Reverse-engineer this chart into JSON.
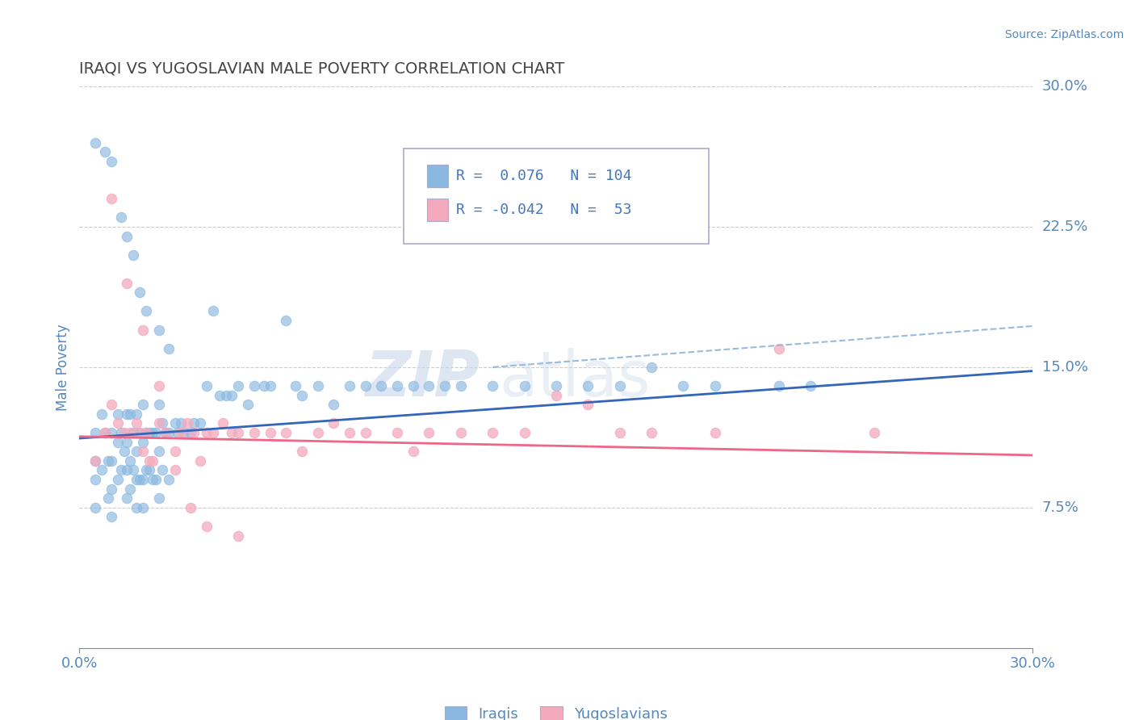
{
  "title": "IRAQI VS YUGOSLAVIAN MALE POVERTY CORRELATION CHART",
  "source": "Source: ZipAtlas.com",
  "ylabel": "Male Poverty",
  "xlim": [
    0.0,
    0.3
  ],
  "ylim": [
    0.0,
    0.3
  ],
  "xtick_positions": [
    0.0,
    0.3
  ],
  "xtick_labels": [
    "0.0%",
    "30.0%"
  ],
  "ytick_positions": [
    0.075,
    0.15,
    0.225,
    0.3
  ],
  "ytick_labels": [
    "7.5%",
    "15.0%",
    "22.5%",
    "30.0%"
  ],
  "grid_lines": [
    0.075,
    0.15,
    0.225,
    0.3
  ],
  "iraqis_color": "#8BB8E0",
  "yugoslavians_color": "#F4AABD",
  "iraqis_R": 0.076,
  "iraqis_N": 104,
  "yugoslavians_R": -0.042,
  "yugoslavians_N": 53,
  "iraqis_line_color": "#3366BB",
  "yugoslavians_line_color": "#EE6688",
  "dashed_line_color": "#99BBDD",
  "background_color": "#FFFFFF",
  "grid_color": "#CCCCCC",
  "title_color": "#444444",
  "tick_color": "#5588BB",
  "legend_text_color": "#4477BB",
  "iraqis_x": [
    0.005,
    0.005,
    0.005,
    0.005,
    0.007,
    0.007,
    0.008,
    0.009,
    0.009,
    0.01,
    0.01,
    0.01,
    0.01,
    0.012,
    0.012,
    0.012,
    0.013,
    0.013,
    0.014,
    0.015,
    0.015,
    0.015,
    0.015,
    0.016,
    0.016,
    0.016,
    0.017,
    0.017,
    0.018,
    0.018,
    0.018,
    0.018,
    0.019,
    0.019,
    0.02,
    0.02,
    0.02,
    0.02,
    0.021,
    0.021,
    0.022,
    0.022,
    0.023,
    0.023,
    0.024,
    0.024,
    0.025,
    0.025,
    0.025,
    0.026,
    0.026,
    0.027,
    0.028,
    0.028,
    0.03,
    0.031,
    0.032,
    0.033,
    0.035,
    0.036,
    0.038,
    0.04,
    0.042,
    0.044,
    0.046,
    0.048,
    0.05,
    0.053,
    0.055,
    0.058,
    0.06,
    0.065,
    0.068,
    0.07,
    0.075,
    0.08,
    0.085,
    0.09,
    0.095,
    0.1,
    0.105,
    0.11,
    0.115,
    0.12,
    0.13,
    0.14,
    0.15,
    0.16,
    0.17,
    0.18,
    0.19,
    0.2,
    0.22,
    0.23,
    0.005,
    0.008,
    0.01,
    0.013,
    0.015,
    0.017,
    0.019,
    0.021,
    0.025,
    0.028
  ],
  "iraqis_y": [
    0.115,
    0.1,
    0.09,
    0.075,
    0.125,
    0.095,
    0.115,
    0.1,
    0.08,
    0.115,
    0.1,
    0.085,
    0.07,
    0.125,
    0.11,
    0.09,
    0.115,
    0.095,
    0.105,
    0.125,
    0.11,
    0.095,
    0.08,
    0.125,
    0.1,
    0.085,
    0.115,
    0.095,
    0.125,
    0.105,
    0.09,
    0.075,
    0.115,
    0.09,
    0.13,
    0.11,
    0.09,
    0.075,
    0.115,
    0.095,
    0.115,
    0.095,
    0.115,
    0.09,
    0.115,
    0.09,
    0.13,
    0.105,
    0.08,
    0.12,
    0.095,
    0.115,
    0.115,
    0.09,
    0.12,
    0.115,
    0.12,
    0.115,
    0.115,
    0.12,
    0.12,
    0.14,
    0.18,
    0.135,
    0.135,
    0.135,
    0.14,
    0.13,
    0.14,
    0.14,
    0.14,
    0.175,
    0.14,
    0.135,
    0.14,
    0.13,
    0.14,
    0.14,
    0.14,
    0.14,
    0.14,
    0.14,
    0.14,
    0.14,
    0.14,
    0.14,
    0.14,
    0.14,
    0.14,
    0.15,
    0.14,
    0.14,
    0.14,
    0.14,
    0.27,
    0.265,
    0.26,
    0.23,
    0.22,
    0.21,
    0.19,
    0.18,
    0.17,
    0.16
  ],
  "yugoslavians_x": [
    0.005,
    0.008,
    0.01,
    0.012,
    0.014,
    0.016,
    0.018,
    0.019,
    0.02,
    0.021,
    0.022,
    0.023,
    0.025,
    0.027,
    0.03,
    0.032,
    0.034,
    0.036,
    0.038,
    0.04,
    0.042,
    0.045,
    0.048,
    0.05,
    0.055,
    0.06,
    0.065,
    0.07,
    0.075,
    0.08,
    0.085,
    0.09,
    0.1,
    0.105,
    0.11,
    0.12,
    0.13,
    0.14,
    0.15,
    0.16,
    0.17,
    0.18,
    0.2,
    0.22,
    0.25,
    0.01,
    0.015,
    0.02,
    0.025,
    0.03,
    0.035,
    0.04,
    0.05
  ],
  "yugoslavians_y": [
    0.1,
    0.115,
    0.13,
    0.12,
    0.115,
    0.115,
    0.12,
    0.115,
    0.105,
    0.115,
    0.1,
    0.1,
    0.12,
    0.115,
    0.105,
    0.115,
    0.12,
    0.115,
    0.1,
    0.115,
    0.115,
    0.12,
    0.115,
    0.115,
    0.115,
    0.115,
    0.115,
    0.105,
    0.115,
    0.12,
    0.115,
    0.115,
    0.115,
    0.105,
    0.115,
    0.115,
    0.115,
    0.115,
    0.135,
    0.13,
    0.115,
    0.115,
    0.115,
    0.16,
    0.115,
    0.24,
    0.195,
    0.17,
    0.14,
    0.095,
    0.075,
    0.065,
    0.06
  ]
}
